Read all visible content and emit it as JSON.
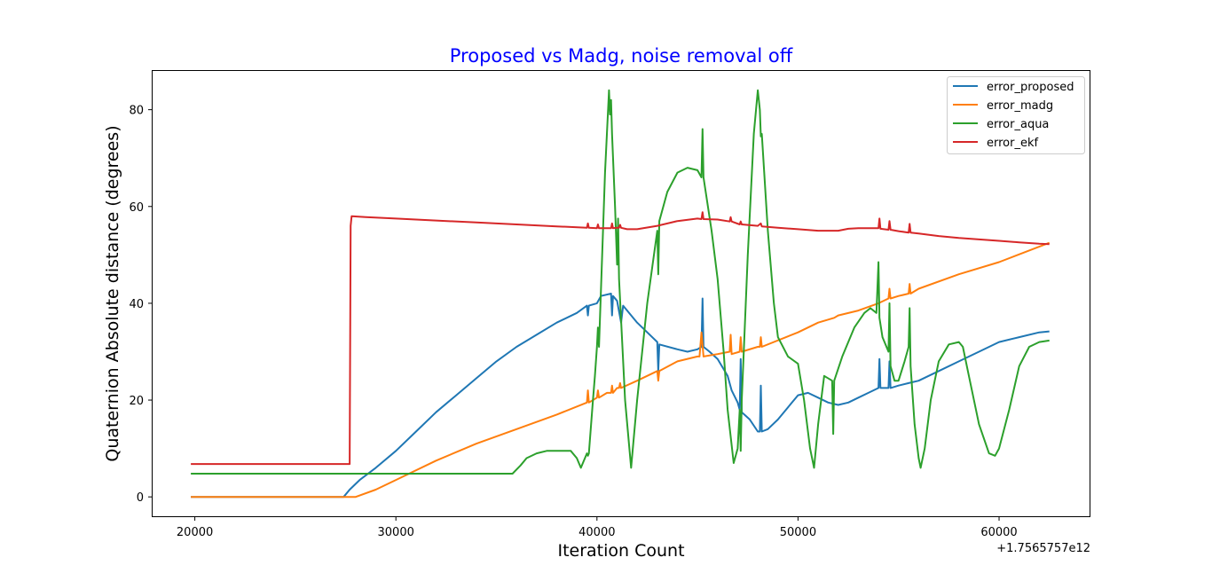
{
  "chart_data": {
    "type": "line",
    "title": "Proposed vs Madg, noise removal off",
    "title_color": "#0000ff",
    "xlabel": "Iteration Count",
    "ylabel": "Quaternion Absolute distance (degrees)",
    "x_offset_label": "+1.7565757e12",
    "xlim": [
      17900,
      64500
    ],
    "ylim": [
      -4,
      88
    ],
    "xticks": [
      20000,
      30000,
      40000,
      50000,
      60000
    ],
    "xtick_labels": [
      "20000",
      "30000",
      "40000",
      "50000",
      "60000"
    ],
    "yticks": [
      0,
      20,
      40,
      60,
      80
    ],
    "ytick_labels": [
      "0",
      "20",
      "40",
      "60",
      "80"
    ],
    "grid": false,
    "legend_position": "top-right",
    "series": [
      {
        "name": "error_proposed",
        "color": "#1f77b4",
        "points": [
          [
            19800,
            0
          ],
          [
            27400,
            0
          ],
          [
            27700,
            1.5
          ],
          [
            28200,
            3.5
          ],
          [
            29000,
            6
          ],
          [
            30000,
            9.5
          ],
          [
            31000,
            13.5
          ],
          [
            32000,
            17.5
          ],
          [
            33000,
            21
          ],
          [
            34000,
            24.5
          ],
          [
            35000,
            28
          ],
          [
            36000,
            31
          ],
          [
            37000,
            33.5
          ],
          [
            38000,
            36
          ],
          [
            39000,
            38
          ],
          [
            39500,
            39.5
          ],
          [
            39550,
            37.5
          ],
          [
            39600,
            39.5
          ],
          [
            40000,
            40
          ],
          [
            40200,
            41.5
          ],
          [
            40700,
            42
          ],
          [
            40750,
            37.5
          ],
          [
            40800,
            41.5
          ],
          [
            41000,
            40.5
          ],
          [
            41200,
            36
          ],
          [
            41300,
            39.5
          ],
          [
            42000,
            36
          ],
          [
            43000,
            32
          ],
          [
            43050,
            26
          ],
          [
            43100,
            31.5
          ],
          [
            44000,
            30.5
          ],
          [
            44500,
            30
          ],
          [
            45000,
            30.5
          ],
          [
            45200,
            31
          ],
          [
            45250,
            41
          ],
          [
            45300,
            31
          ],
          [
            45600,
            30
          ],
          [
            46000,
            28.5
          ],
          [
            46500,
            25
          ],
          [
            46700,
            22
          ],
          [
            47000,
            19.5
          ],
          [
            47100,
            18
          ],
          [
            47150,
            28.5
          ],
          [
            47200,
            17.5
          ],
          [
            47600,
            16
          ],
          [
            48000,
            13.5
          ],
          [
            48100,
            13.5
          ],
          [
            48150,
            23
          ],
          [
            48200,
            13.5
          ],
          [
            48500,
            14
          ],
          [
            49000,
            16
          ],
          [
            49500,
            18.5
          ],
          [
            50000,
            21
          ],
          [
            50500,
            21.5
          ],
          [
            51000,
            20.5
          ],
          [
            51500,
            19.5
          ],
          [
            52000,
            19
          ],
          [
            52500,
            19.5
          ],
          [
            53000,
            20.5
          ],
          [
            53500,
            21.5
          ],
          [
            54000,
            22.5
          ],
          [
            54050,
            28.5
          ],
          [
            54100,
            22.5
          ],
          [
            54500,
            22.5
          ],
          [
            54550,
            28
          ],
          [
            54600,
            22.5
          ],
          [
            55000,
            23
          ],
          [
            55500,
            23.5
          ],
          [
            56000,
            24
          ],
          [
            57000,
            26
          ],
          [
            58000,
            28
          ],
          [
            59000,
            30
          ],
          [
            60000,
            32
          ],
          [
            61000,
            33
          ],
          [
            62000,
            34
          ],
          [
            62500,
            34.2
          ]
        ]
      },
      {
        "name": "error_madg",
        "color": "#ff7f0e",
        "points": [
          [
            19800,
            0
          ],
          [
            27400,
            0
          ],
          [
            28000,
            0
          ],
          [
            29000,
            1.5
          ],
          [
            30000,
            3.5
          ],
          [
            32000,
            7.5
          ],
          [
            34000,
            11
          ],
          [
            36000,
            14
          ],
          [
            38000,
            17
          ],
          [
            39500,
            19.5
          ],
          [
            39550,
            22
          ],
          [
            39600,
            19.5
          ],
          [
            40000,
            20.5
          ],
          [
            40050,
            22
          ],
          [
            40100,
            20.5
          ],
          [
            40500,
            21.5
          ],
          [
            40700,
            21.5
          ],
          [
            40750,
            23
          ],
          [
            40800,
            21.5
          ],
          [
            41000,
            22.5
          ],
          [
            41100,
            22.5
          ],
          [
            41150,
            23.5
          ],
          [
            41200,
            22.5
          ],
          [
            42000,
            24
          ],
          [
            43000,
            26
          ],
          [
            43050,
            24
          ],
          [
            43100,
            26
          ],
          [
            44000,
            28
          ],
          [
            45000,
            29
          ],
          [
            45100,
            29
          ],
          [
            45200,
            34
          ],
          [
            45300,
            29
          ],
          [
            46000,
            29.5
          ],
          [
            46600,
            30
          ],
          [
            46650,
            33.5
          ],
          [
            46700,
            29.5
          ],
          [
            47100,
            30
          ],
          [
            47150,
            33
          ],
          [
            47200,
            30
          ],
          [
            48000,
            31
          ],
          [
            48100,
            31
          ],
          [
            48150,
            33
          ],
          [
            48200,
            31
          ],
          [
            50000,
            34
          ],
          [
            51000,
            36
          ],
          [
            51800,
            37
          ],
          [
            52000,
            37.5
          ],
          [
            53000,
            38.5
          ],
          [
            54000,
            40
          ],
          [
            54500,
            41
          ],
          [
            54550,
            43
          ],
          [
            54600,
            41
          ],
          [
            55000,
            41.5
          ],
          [
            55500,
            42
          ],
          [
            55550,
            44
          ],
          [
            55600,
            42
          ],
          [
            56000,
            43
          ],
          [
            58000,
            46
          ],
          [
            60000,
            48.5
          ],
          [
            62500,
            52.5
          ]
        ]
      },
      {
        "name": "error_aqua",
        "color": "#2ca02c",
        "points": [
          [
            19800,
            4.8
          ],
          [
            35800,
            4.8
          ],
          [
            36200,
            6.5
          ],
          [
            36500,
            8
          ],
          [
            37000,
            9
          ],
          [
            37500,
            9.5
          ],
          [
            38300,
            9.5
          ],
          [
            38700,
            9.5
          ],
          [
            39000,
            8
          ],
          [
            39200,
            6
          ],
          [
            39500,
            9
          ],
          [
            39550,
            8.5
          ],
          [
            39600,
            9
          ],
          [
            39800,
            20
          ],
          [
            39900,
            25
          ],
          [
            40000,
            31
          ],
          [
            40050,
            35
          ],
          [
            40100,
            31
          ],
          [
            40400,
            67
          ],
          [
            40600,
            84
          ],
          [
            40650,
            79
          ],
          [
            40700,
            82
          ],
          [
            40750,
            75
          ],
          [
            40900,
            60
          ],
          [
            41000,
            48
          ],
          [
            41050,
            57.5
          ],
          [
            41100,
            45
          ],
          [
            41400,
            20
          ],
          [
            41700,
            6
          ],
          [
            42000,
            20
          ],
          [
            42500,
            40
          ],
          [
            43000,
            55
          ],
          [
            43050,
            46
          ],
          [
            43100,
            57
          ],
          [
            43500,
            63
          ],
          [
            44000,
            67
          ],
          [
            44500,
            68
          ],
          [
            45000,
            67.5
          ],
          [
            45200,
            66
          ],
          [
            45250,
            76
          ],
          [
            45300,
            66
          ],
          [
            45700,
            55
          ],
          [
            46000,
            45
          ],
          [
            46300,
            30
          ],
          [
            46500,
            18
          ],
          [
            46800,
            7
          ],
          [
            47000,
            10
          ],
          [
            47100,
            18
          ],
          [
            47150,
            9.5
          ],
          [
            47200,
            20
          ],
          [
            47500,
            50
          ],
          [
            47800,
            75
          ],
          [
            48000,
            84
          ],
          [
            48100,
            80
          ],
          [
            48150,
            74.5
          ],
          [
            48200,
            75
          ],
          [
            48500,
            55
          ],
          [
            48800,
            40
          ],
          [
            49000,
            33
          ],
          [
            49500,
            29
          ],
          [
            50000,
            27.5
          ],
          [
            50300,
            20
          ],
          [
            50600,
            10
          ],
          [
            50800,
            6
          ],
          [
            51000,
            15
          ],
          [
            51300,
            25
          ],
          [
            51700,
            24
          ],
          [
            51750,
            13
          ],
          [
            51800,
            24
          ],
          [
            52200,
            29
          ],
          [
            52800,
            35
          ],
          [
            53300,
            38
          ],
          [
            53600,
            39
          ],
          [
            53900,
            38
          ],
          [
            54000,
            48.5
          ],
          [
            54050,
            37
          ],
          [
            54200,
            33
          ],
          [
            54500,
            30
          ],
          [
            54550,
            40
          ],
          [
            54600,
            27
          ],
          [
            54800,
            24
          ],
          [
            55000,
            24
          ],
          [
            55300,
            28
          ],
          [
            55500,
            31
          ],
          [
            55550,
            39
          ],
          [
            55600,
            27
          ],
          [
            55800,
            15
          ],
          [
            56000,
            8
          ],
          [
            56100,
            6
          ],
          [
            56300,
            10
          ],
          [
            56600,
            20
          ],
          [
            57000,
            28
          ],
          [
            57500,
            31.5
          ],
          [
            58000,
            32
          ],
          [
            58200,
            31
          ],
          [
            58500,
            25
          ],
          [
            59000,
            15
          ],
          [
            59500,
            9
          ],
          [
            59800,
            8.5
          ],
          [
            60000,
            10
          ],
          [
            60500,
            18
          ],
          [
            61000,
            27
          ],
          [
            61500,
            31
          ],
          [
            62000,
            32
          ],
          [
            62500,
            32.3
          ]
        ]
      },
      {
        "name": "error_ekf",
        "color": "#d62728",
        "points": [
          [
            19800,
            6.8
          ],
          [
            27700,
            6.8
          ],
          [
            27750,
            56
          ],
          [
            27800,
            58
          ],
          [
            28500,
            57.8
          ],
          [
            30000,
            57.5
          ],
          [
            32000,
            57.1
          ],
          [
            34000,
            56.7
          ],
          [
            36000,
            56.3
          ],
          [
            38000,
            55.9
          ],
          [
            39500,
            55.6
          ],
          [
            39550,
            56.5
          ],
          [
            39600,
            55.6
          ],
          [
            40000,
            55.5
          ],
          [
            40050,
            56.3
          ],
          [
            40100,
            55.5
          ],
          [
            40700,
            55.5
          ],
          [
            40750,
            56.5
          ],
          [
            40800,
            55.5
          ],
          [
            41000,
            55.6
          ],
          [
            41100,
            55.6
          ],
          [
            41150,
            56.2
          ],
          [
            41200,
            55.6
          ],
          [
            41500,
            55.3
          ],
          [
            42000,
            55.3
          ],
          [
            43000,
            56
          ],
          [
            44000,
            57
          ],
          [
            45000,
            57.5
          ],
          [
            45200,
            57.4
          ],
          [
            45250,
            58.8
          ],
          [
            45300,
            57.4
          ],
          [
            46000,
            57.3
          ],
          [
            46600,
            56.9
          ],
          [
            46650,
            57.8
          ],
          [
            46700,
            56.9
          ],
          [
            47100,
            56.3
          ],
          [
            47150,
            56.9
          ],
          [
            47200,
            56.3
          ],
          [
            48000,
            56
          ],
          [
            48150,
            56.5
          ],
          [
            48200,
            55.9
          ],
          [
            49000,
            55.6
          ],
          [
            50000,
            55.3
          ],
          [
            51000,
            55
          ],
          [
            51800,
            55
          ],
          [
            52000,
            55
          ],
          [
            52500,
            55.4
          ],
          [
            53000,
            55.5
          ],
          [
            54000,
            55.5
          ],
          [
            54050,
            57.5
          ],
          [
            54100,
            55.4
          ],
          [
            54500,
            55.2
          ],
          [
            54550,
            57
          ],
          [
            54600,
            55.2
          ],
          [
            55000,
            54.9
          ],
          [
            55500,
            54.6
          ],
          [
            55550,
            56.4
          ],
          [
            55600,
            54.6
          ],
          [
            56000,
            54.4
          ],
          [
            57000,
            53.9
          ],
          [
            58000,
            53.5
          ],
          [
            59000,
            53.2
          ],
          [
            60000,
            52.9
          ],
          [
            61000,
            52.6
          ],
          [
            62000,
            52.3
          ],
          [
            62500,
            52.2
          ]
        ]
      }
    ]
  }
}
